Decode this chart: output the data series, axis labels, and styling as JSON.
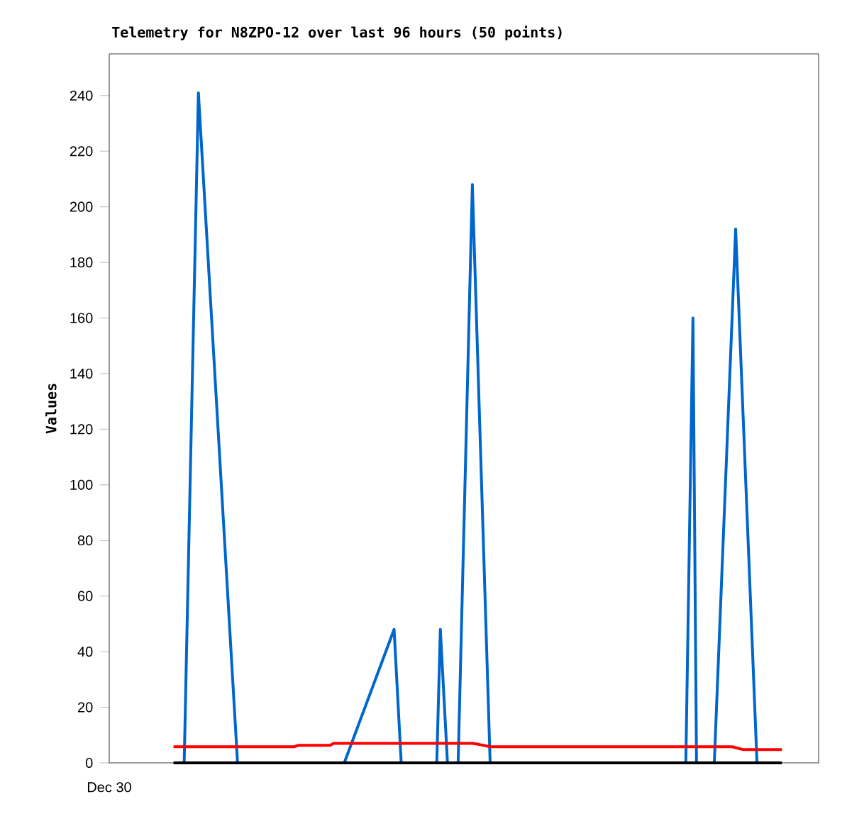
{
  "chart_data": {
    "type": "line",
    "title": "Telemetry for N8ZPO-12 over last 96 hours (50 points)",
    "ylabel": "Values",
    "annotations": [
      "Dec 30"
    ],
    "categories": [
      null,
      null,
      null,
      null,
      null,
      null,
      null,
      null,
      null,
      null,
      null,
      null,
      null,
      null,
      null,
      null,
      null,
      null,
      null,
      null,
      null,
      null,
      null,
      null,
      null,
      null,
      null,
      null,
      null,
      null,
      null,
      null,
      null,
      null,
      null,
      null,
      null,
      null,
      null,
      null,
      null,
      null,
      null,
      null,
      null,
      null,
      null,
      null,
      null,
      null,
      null,
      null,
      null,
      null,
      null,
      null,
      null,
      null,
      null,
      null,
      null,
      null,
      null,
      null,
      null,
      null,
      null,
      null,
      null,
      null,
      null,
      null,
      null,
      null,
      null,
      null,
      null,
      null,
      null,
      null,
      null,
      null,
      null,
      null,
      null,
      null,
      null,
      null,
      null,
      null,
      null,
      null,
      null,
      null,
      null,
      null,
      null,
      null,
      null,
      null,
      null,
      null,
      null,
      null,
      null,
      null,
      null,
      null,
      null,
      null,
      null,
      null,
      null,
      null,
      null,
      null,
      null,
      null,
      null,
      null,
      null,
      null,
      null,
      null,
      null,
      null,
      null,
      null,
      null,
      null,
      null,
      null,
      null,
      null,
      null,
      null,
      null,
      null,
      null,
      null,
      null,
      null,
      null,
      null,
      null,
      null,
      null,
      null,
      null,
      null,
      null,
      null,
      null,
      null,
      null,
      null,
      null,
      null,
      null,
      null,
      null,
      null,
      null,
      null,
      null,
      null,
      null,
      null,
      null,
      null,
      null,
      null
    ],
    "ylim": [
      0,
      255
    ],
    "yticks": [
      0,
      20,
      40,
      60,
      80,
      100,
      120,
      140,
      160,
      180,
      200,
      220,
      240
    ],
    "tick_labels": "y",
    "grid": false,
    "marker": "none",
    "series": [
      {
        "color": "#0066cc",
        "values": [
          null,
          null,
          null,
          0,
          null,
          null,
          null,
          241,
          null,
          null,
          null,
          null,
          null,
          null,
          null,
          null,
          null,
          null,
          0,
          null,
          null,
          null,
          null,
          null,
          null,
          null,
          null,
          null,
          null,
          null,
          null,
          null,
          null,
          null,
          null,
          null,
          null,
          null,
          null,
          null,
          null,
          null,
          null,
          null,
          null,
          null,
          null,
          null,
          0,
          null,
          null,
          null,
          null,
          null,
          null,
          null,
          null,
          null,
          null,
          null,
          null,
          null,
          48,
          null,
          0,
          null,
          null,
          null,
          null,
          null,
          null,
          null,
          null,
          null,
          0,
          48,
          null,
          0,
          null,
          null,
          0,
          null,
          null,
          null,
          208,
          null,
          null,
          null,
          null,
          0,
          null,
          null,
          null,
          null,
          null,
          null,
          null,
          null,
          null,
          null,
          null,
          null,
          null,
          null,
          null,
          null,
          null,
          null,
          null,
          null,
          null,
          null,
          null,
          null,
          null,
          null,
          null,
          null,
          null,
          null,
          null,
          null,
          null,
          null,
          null,
          null,
          null,
          null,
          null,
          null,
          null,
          null,
          null,
          null,
          null,
          null,
          null,
          null,
          null,
          null,
          null,
          null,
          null,
          null,
          0,
          null,
          160,
          0,
          null,
          null,
          null,
          null,
          0,
          null,
          null,
          null,
          null,
          null,
          192,
          null,
          null,
          null,
          null,
          null,
          0,
          null,
          null,
          null,
          null,
          null,
          null,
          null
        ]
      },
      {
        "color": "#ff0000",
        "values": [
          5.8,
          null,
          null,
          null,
          null,
          null,
          null,
          null,
          null,
          null,
          null,
          null,
          null,
          null,
          null,
          null,
          null,
          null,
          null,
          null,
          null,
          null,
          null,
          null,
          null,
          null,
          null,
          null,
          null,
          null,
          null,
          null,
          null,
          null,
          5.8,
          6.3,
          null,
          null,
          null,
          null,
          null,
          null,
          null,
          null,
          6.3,
          7.0,
          null,
          null,
          null,
          null,
          null,
          null,
          null,
          null,
          null,
          null,
          null,
          null,
          null,
          null,
          null,
          null,
          null,
          null,
          null,
          null,
          null,
          null,
          null,
          null,
          null,
          null,
          null,
          null,
          null,
          null,
          null,
          null,
          null,
          null,
          null,
          null,
          null,
          null,
          7.0,
          null,
          6.6,
          null,
          null,
          5.8,
          null,
          null,
          null,
          null,
          null,
          null,
          null,
          null,
          null,
          null,
          null,
          null,
          null,
          null,
          null,
          null,
          null,
          null,
          null,
          null,
          null,
          null,
          null,
          null,
          null,
          null,
          null,
          null,
          null,
          null,
          null,
          null,
          null,
          null,
          null,
          null,
          null,
          null,
          null,
          null,
          null,
          null,
          null,
          null,
          null,
          null,
          null,
          null,
          null,
          null,
          null,
          null,
          null,
          null,
          null,
          null,
          null,
          null,
          null,
          null,
          null,
          null,
          null,
          null,
          null,
          null,
          null,
          5.8,
          null,
          null,
          4.8,
          null,
          null,
          null,
          null,
          null,
          null,
          null,
          null,
          null,
          null,
          4.8
        ]
      },
      {
        "color": "#000000",
        "values": [
          0,
          null,
          null,
          null,
          null,
          null,
          null,
          null,
          null,
          null,
          null,
          null,
          null,
          null,
          null,
          null,
          null,
          null,
          null,
          null,
          null,
          null,
          null,
          null,
          null,
          null,
          null,
          null,
          null,
          null,
          null,
          null,
          null,
          null,
          null,
          null,
          null,
          null,
          null,
          null,
          null,
          null,
          null,
          null,
          null,
          null,
          null,
          null,
          null,
          null,
          null,
          null,
          null,
          null,
          null,
          null,
          null,
          null,
          null,
          null,
          null,
          null,
          null,
          null,
          null,
          null,
          null,
          null,
          null,
          null,
          null,
          null,
          null,
          null,
          null,
          null,
          null,
          null,
          null,
          null,
          null,
          null,
          null,
          null,
          null,
          null,
          null,
          null,
          null,
          null,
          null,
          null,
          null,
          null,
          null,
          null,
          null,
          null,
          null,
          null,
          null,
          null,
          null,
          null,
          null,
          null,
          null,
          null,
          null,
          null,
          null,
          null,
          null,
          null,
          null,
          null,
          null,
          null,
          null,
          null,
          null,
          null,
          null,
          null,
          null,
          null,
          null,
          null,
          null,
          null,
          null,
          null,
          null,
          null,
          null,
          null,
          null,
          null,
          null,
          null,
          null,
          null,
          null,
          null,
          null,
          null,
          null,
          null,
          null,
          null,
          null,
          null,
          null,
          null,
          null,
          null,
          null,
          null,
          null,
          null,
          null,
          null,
          null,
          null,
          null,
          null,
          null,
          null,
          null,
          null,
          null,
          0
        ]
      }
    ]
  }
}
